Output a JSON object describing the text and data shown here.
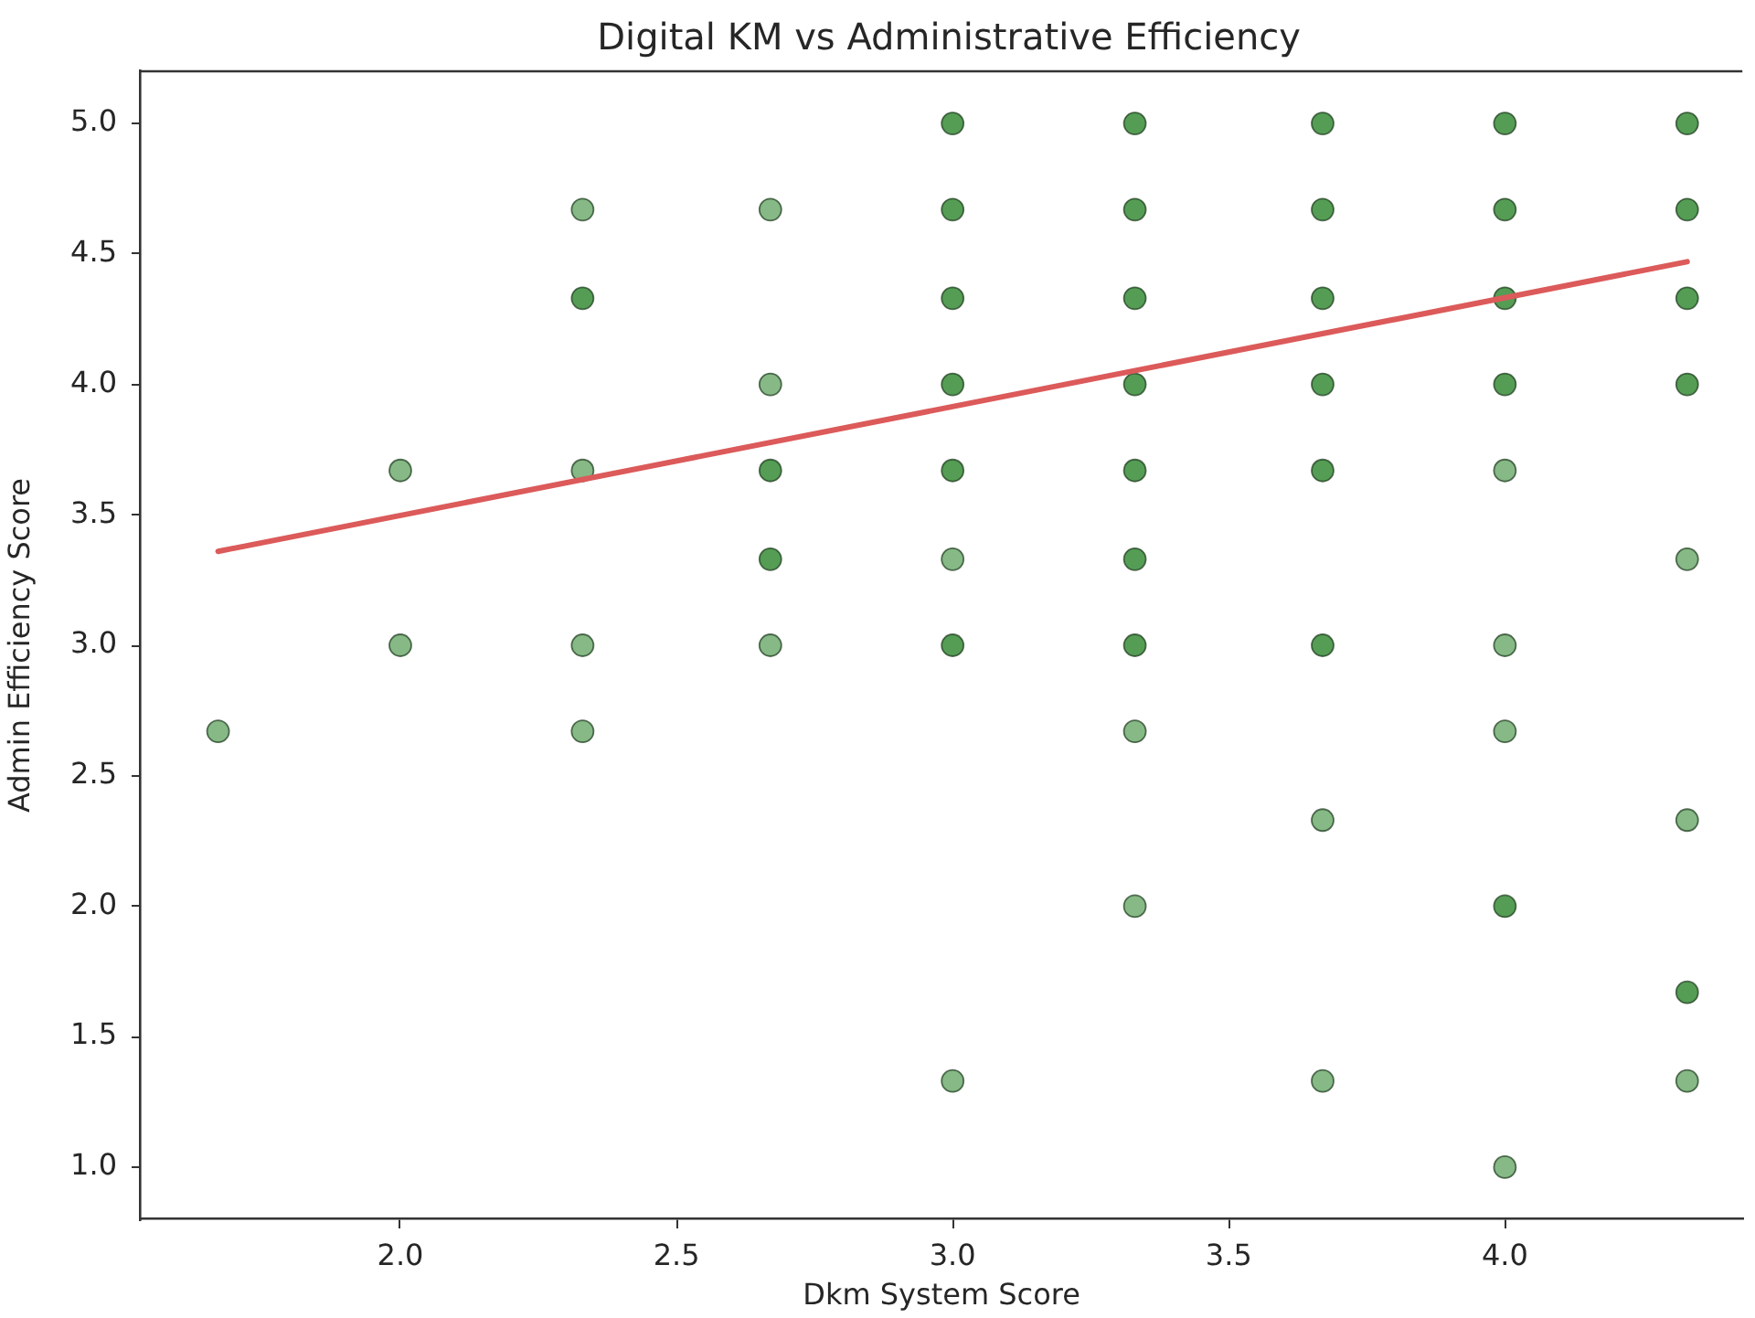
{
  "chart_data": {
    "type": "scatter",
    "title": "Digital KM vs Administrative Efficiency",
    "xlabel": "Dkm System Score",
    "ylabel": "Admin Efficiency Score",
    "xlim": [
      1.53,
      4.43
    ],
    "ylim": [
      0.8,
      5.2
    ],
    "xticks": [
      {
        "value": 2,
        "label": "2.0"
      },
      2.5,
      {
        "value": 3,
        "label": "3.0"
      },
      3.5,
      {
        "value": 4,
        "label": "4.0"
      }
    ],
    "yticks": [
      {
        "value": 1,
        "label": "1.0"
      },
      1.5,
      {
        "value": 2,
        "label": "2.0"
      },
      2.5,
      {
        "value": 3,
        "label": "3.0"
      },
      3.5,
      {
        "value": 4,
        "label": "4.0"
      },
      4.5,
      {
        "value": 5,
        "label": "5.0"
      }
    ],
    "grid": false,
    "legend": false,
    "marker": "circle",
    "series": [
      {
        "x": [
          1.67,
          2,
          2,
          2.33,
          2.33,
          2.33,
          2.33,
          2.33,
          2.67,
          2.67,
          2.67,
          2.67,
          2.67,
          3,
          3,
          3,
          3,
          3,
          3,
          3,
          3,
          3.33,
          3.33,
          3.33,
          3.33,
          3.33,
          3.33,
          3.33,
          3.33,
          3.33,
          3.67,
          3.67,
          3.67,
          3.67,
          3.67,
          3.67,
          3.67,
          3.67,
          4,
          4,
          4,
          4,
          4,
          4,
          4,
          4,
          4,
          4.33,
          4.33,
          4.33,
          4.33,
          4.33,
          4.33,
          4.33,
          4.33
        ],
        "values": [
          2.67,
          3.67,
          3,
          4.67,
          4.33,
          3.67,
          3,
          2.67,
          4.67,
          4,
          3.67,
          3.33,
          3,
          5,
          4.67,
          4.33,
          4,
          3.67,
          3.33,
          3,
          1.33,
          5,
          4.67,
          4.33,
          4,
          3.67,
          3.33,
          3,
          2.67,
          2,
          5,
          4.67,
          4.33,
          4,
          3.67,
          3,
          2.33,
          1.33,
          5,
          4.67,
          4.33,
          4,
          3.67,
          3,
          2.67,
          2,
          1,
          5,
          4.67,
          4.33,
          4,
          3.33,
          2.33,
          1.67,
          1.33
        ],
        "colors": [
          "#86b986",
          "#86b986",
          "#86b986",
          "#86b986",
          "#559d55",
          "#86b986",
          "#86b986",
          "#86b986",
          "#86b986",
          "#86b986",
          "#559d55",
          "#559d55",
          "#86b986",
          "#559d55",
          "#559d55",
          "#559d55",
          "#559d55",
          "#559d55",
          "#86b986",
          "#559d55",
          "#86b986",
          "#559d55",
          "#559d55",
          "#559d55",
          "#559d55",
          "#559d55",
          "#559d55",
          "#559d55",
          "#86b986",
          "#86b986",
          "#559d55",
          "#559d55",
          "#559d55",
          "#559d55",
          "#559d55",
          "#559d55",
          "#86b986",
          "#86b986",
          "#559d55",
          "#559d55",
          "#559d55",
          "#559d55",
          "#86b986",
          "#86b986",
          "#86b986",
          "#559d55",
          "#86b986",
          "#559d55",
          "#559d55",
          "#559d55",
          "#559d55",
          "#86b986",
          "#86b986",
          "#559d55",
          "#86b986"
        ]
      },
      {
        "type": "line",
        "x": [
          1.67,
          4.33
        ],
        "values": [
          3.36,
          4.47
        ],
        "color": "#dc5a5a",
        "marker": "none",
        "line_style": "solid"
      }
    ]
  }
}
